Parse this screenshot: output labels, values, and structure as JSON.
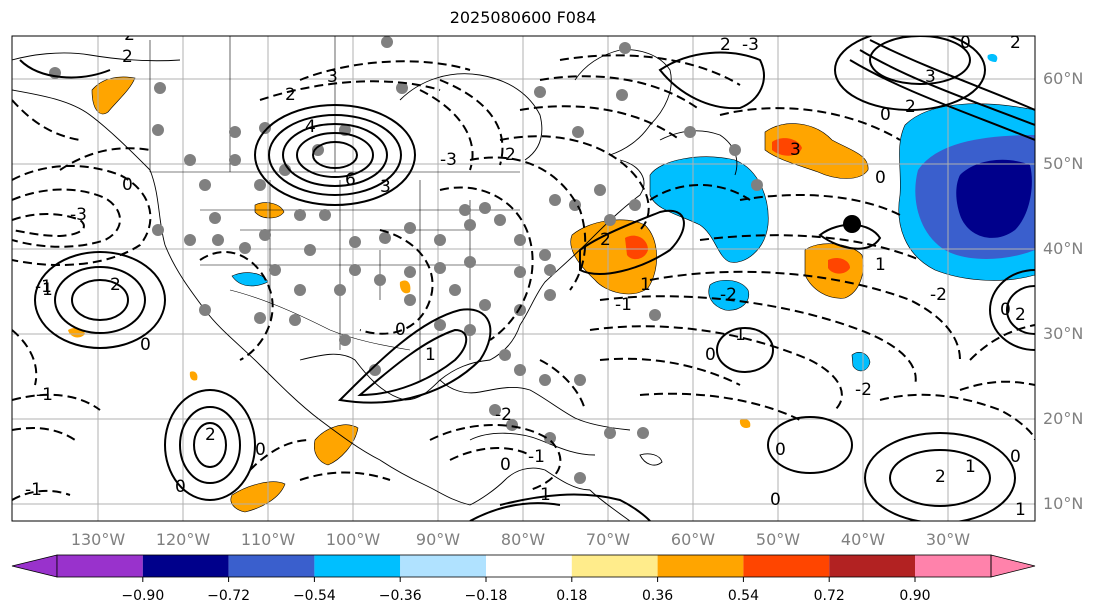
{
  "title": "2025080600 F084",
  "lat_labels": [
    "60°N",
    "50°N",
    "40°N",
    "30°N",
    "20°N",
    "10°N"
  ],
  "lon_labels": [
    "130°W",
    "120°W",
    "110°W",
    "100°W",
    "90°W",
    "80°W",
    "70°W",
    "60°W",
    "50°W",
    "40°W",
    "30°W"
  ],
  "colorbar": {
    "ticks": [
      "−0.90",
      "−0.72",
      "−0.54",
      "−0.36",
      "−0.18",
      "0.18",
      "0.36",
      "0.54",
      "0.72",
      "0.90"
    ],
    "colors": [
      "#9932cc",
      "#00008b",
      "#3a5fcd",
      "#00bfff",
      "#b0e2ff",
      "#ffffff",
      "#ffec8b",
      "#ffa500",
      "#ff4500",
      "#b22222",
      "#ff82ab"
    ]
  },
  "contour_labels": [
    "3",
    "2",
    "1",
    "0",
    "-1",
    "-2",
    "-3",
    "4",
    "6"
  ],
  "colors": {
    "orange": "#ffa500",
    "red_orange": "#ff4500",
    "light_blue": "#00bfff",
    "blue": "#3a5fcd",
    "navy": "#00008b",
    "station": "#808080",
    "grid": "#b0b0b0"
  }
}
